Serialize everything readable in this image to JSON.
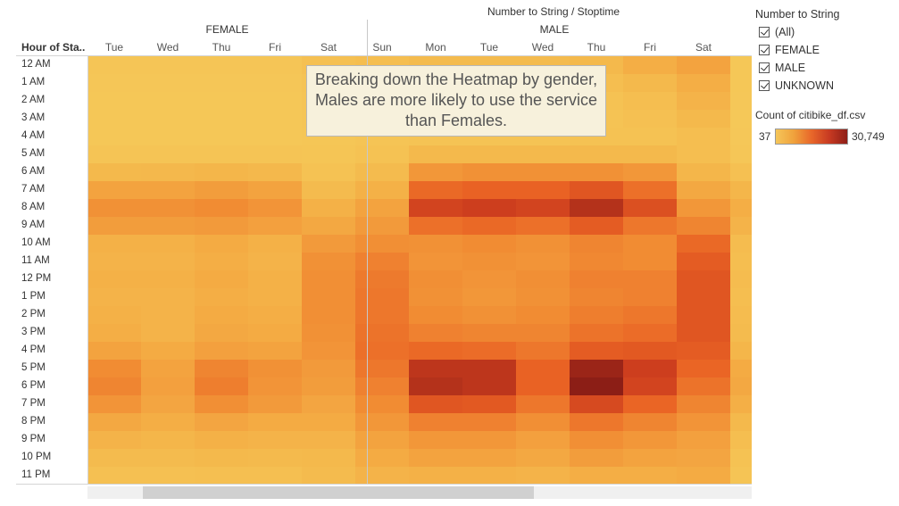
{
  "sheet_title": "Number to String / Stoptime",
  "row_header": "Hour of Sta..",
  "annotation": "Breaking down the Heatmap by gender, Males are more likely to use the service than Females.",
  "filter": {
    "title": "Number to String",
    "items": [
      "(All)",
      "FEMALE",
      "MALE",
      "UNKNOWN"
    ]
  },
  "legend": {
    "title": "Count of citibike_df.csv",
    "min": "37",
    "max": "30,749"
  },
  "colors": {
    "low": "#f5c65a",
    "high": "#8e1e17",
    "annotation_bg": "#f7f1dc"
  },
  "chart_data": {
    "type": "heatmap",
    "groups": [
      {
        "name": "FEMALE",
        "days": [
          "Tue",
          "Wed",
          "Thu",
          "Fri",
          "Sat"
        ]
      },
      {
        "name": "MALE",
        "days": [
          "Sun",
          "Mon",
          "Tue",
          "Wed",
          "Thu",
          "Fri",
          "Sat"
        ]
      }
    ],
    "rows": [
      "12 AM",
      "1 AM",
      "2 AM",
      "3 AM",
      "4 AM",
      "5 AM",
      "6 AM",
      "7 AM",
      "8 AM",
      "9 AM",
      "10 AM",
      "11 AM",
      "12 PM",
      "1 PM",
      "2 PM",
      "3 PM",
      "4 PM",
      "5 PM",
      "6 PM",
      "7 PM",
      "8 PM",
      "9 PM",
      "10 PM",
      "11 PM"
    ],
    "color_range": [
      37,
      30749
    ],
    "values": [
      [
        600,
        600,
        600,
        600,
        1500,
        2000,
        2500,
        2500,
        2500,
        3000,
        5000,
        7000
      ],
      [
        400,
        400,
        400,
        400,
        1000,
        1500,
        1500,
        1500,
        1500,
        2000,
        3000,
        5000
      ],
      [
        300,
        300,
        300,
        300,
        800,
        1200,
        1000,
        1000,
        1000,
        1200,
        2000,
        4000
      ],
      [
        250,
        250,
        250,
        250,
        600,
        1000,
        800,
        800,
        800,
        1000,
        1500,
        3000
      ],
      [
        300,
        300,
        300,
        300,
        500,
        800,
        1000,
        1000,
        1000,
        1200,
        1200,
        2000
      ],
      [
        800,
        800,
        800,
        800,
        700,
        1200,
        3000,
        3000,
        3000,
        3000,
        3000,
        2000
      ],
      [
        3000,
        3200,
        3500,
        3200,
        1200,
        2500,
        9000,
        10000,
        10000,
        10000,
        9000,
        3500
      ],
      [
        7000,
        7000,
        8000,
        7000,
        2500,
        4500,
        16000,
        17000,
        17000,
        19000,
        15000,
        6000
      ],
      [
        10000,
        10000,
        11000,
        9500,
        4500,
        7000,
        22000,
        23000,
        22000,
        26000,
        20000,
        9000
      ],
      [
        8000,
        8000,
        8500,
        7500,
        6000,
        8500,
        15000,
        16000,
        15000,
        18000,
        14000,
        12000
      ],
      [
        4500,
        4500,
        5500,
        4500,
        8500,
        10500,
        10000,
        11000,
        10000,
        12000,
        11000,
        16000
      ],
      [
        4000,
        4000,
        5000,
        4000,
        10000,
        12500,
        9500,
        10000,
        9500,
        11500,
        11000,
        18000
      ],
      [
        4500,
        4500,
        5500,
        4500,
        10500,
        13500,
        10500,
        9500,
        10500,
        12500,
        12500,
        19000
      ],
      [
        4000,
        4000,
        5000,
        4500,
        10500,
        14000,
        10000,
        9000,
        10000,
        12000,
        12500,
        19000
      ],
      [
        4500,
        4000,
        5500,
        5000,
        10500,
        14000,
        11000,
        10000,
        11000,
        13000,
        14000,
        19000
      ],
      [
        5000,
        4000,
        6000,
        5500,
        10000,
        14500,
        12500,
        12000,
        12000,
        14500,
        15500,
        19000
      ],
      [
        7000,
        5500,
        7500,
        7000,
        9500,
        15000,
        16000,
        15500,
        14000,
        18000,
        18500,
        18000
      ],
      [
        11000,
        7000,
        12000,
        10000,
        8500,
        14000,
        25000,
        25000,
        17000,
        29000,
        23000,
        16500
      ],
      [
        12000,
        7500,
        13000,
        9500,
        8000,
        12500,
        26000,
        25000,
        17000,
        30749,
        22000,
        14500
      ],
      [
        9500,
        6500,
        10500,
        8500,
        6500,
        11000,
        19000,
        18500,
        14000,
        21000,
        16500,
        12000
      ],
      [
        6000,
        5000,
        6500,
        5500,
        5500,
        9000,
        12500,
        12500,
        10500,
        14000,
        12000,
        9500
      ],
      [
        4000,
        3500,
        4500,
        4000,
        4000,
        7000,
        9000,
        9000,
        7500,
        10500,
        9000,
        7500
      ],
      [
        2500,
        2500,
        3000,
        2800,
        3000,
        5500,
        7000,
        7000,
        6000,
        8000,
        7000,
        6500
      ],
      [
        1500,
        1500,
        1800,
        1800,
        2500,
        4000,
        4500,
        4500,
        4000,
        5000,
        5000,
        5500
      ]
    ]
  }
}
